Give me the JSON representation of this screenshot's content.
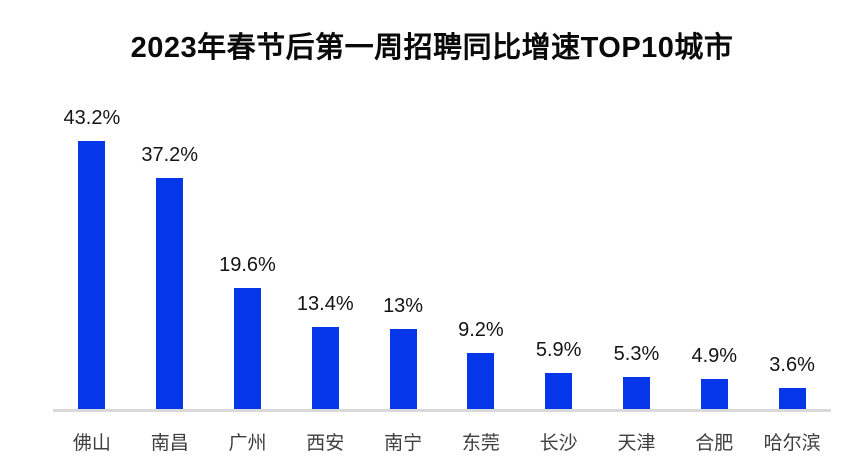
{
  "page": {
    "background": "#ffffff"
  },
  "header": {
    "title": "2023年春节后第一周招聘同比增速TOP10城市"
  },
  "chart_data": {
    "type": "bar",
    "title": "2023年春节后第一周招聘同比增速TOP10城市",
    "categories": [
      "佛山",
      "南昌",
      "广州",
      "西安",
      "南宁",
      "东莞",
      "长沙",
      "天津",
      "合肥",
      "哈尔滨"
    ],
    "values": [
      43.2,
      37.2,
      19.6,
      13.4,
      13,
      9.2,
      5.9,
      5.3,
      4.9,
      3.6
    ],
    "value_labels": [
      "43.2%",
      "37.2%",
      "19.6%",
      "13.4%",
      "13%",
      "9.2%",
      "5.9%",
      "5.3%",
      "4.9%",
      "3.6%"
    ],
    "xlabel": "",
    "ylabel": "",
    "ylim": [
      0,
      43.2
    ],
    "grid": false,
    "legend": false,
    "data_labels_position": "above-bars",
    "bar_color": "#0636ea",
    "baseline_color": "#d9d9d9",
    "value_label_color": "#141414",
    "category_label_color": "#3f3f3f",
    "title_color": "#0a0a0a"
  }
}
